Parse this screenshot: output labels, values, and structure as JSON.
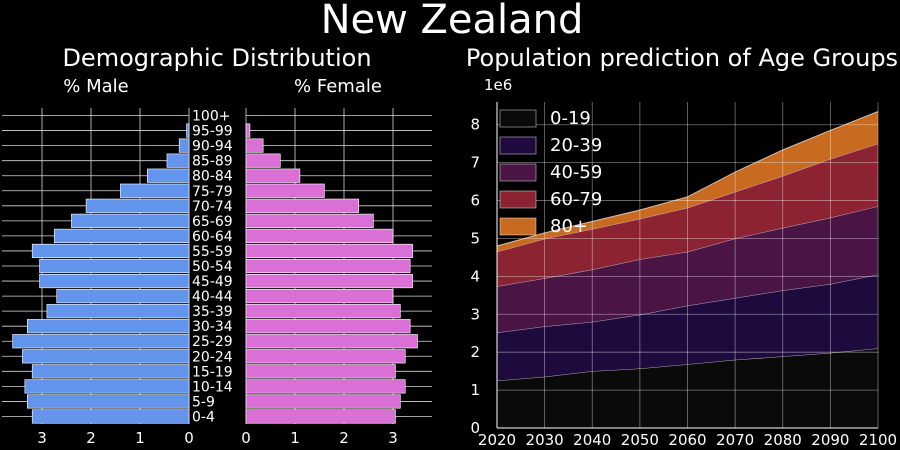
{
  "figure_title": "New Zealand",
  "chart_data": [
    {
      "type": "bar",
      "orientation": "horizontal",
      "title": "Demographic Distribution",
      "left_label": "% Male",
      "right_label": "% Female",
      "categories": [
        "0-4",
        "5-9",
        "10-14",
        "15-19",
        "20-24",
        "25-29",
        "30-34",
        "35-39",
        "40-44",
        "45-49",
        "50-54",
        "55-59",
        "60-64",
        "65-69",
        "70-74",
        "75-79",
        "80-84",
        "85-89",
        "90-94",
        "95-99",
        "100+"
      ],
      "series": [
        {
          "name": "% Male",
          "color": "#6495ED",
          "values": [
            3.2,
            3.3,
            3.35,
            3.2,
            3.4,
            3.6,
            3.3,
            2.9,
            2.7,
            3.05,
            3.05,
            3.2,
            2.75,
            2.4,
            2.1,
            1.4,
            0.85,
            0.45,
            0.2,
            0.05,
            0.0
          ]
        },
        {
          "name": "% Female",
          "color": "#DA70D6",
          "values": [
            3.05,
            3.15,
            3.25,
            3.05,
            3.25,
            3.5,
            3.35,
            3.15,
            3.0,
            3.4,
            3.35,
            3.4,
            3.0,
            2.6,
            2.3,
            1.6,
            1.1,
            0.7,
            0.35,
            0.08,
            0.0
          ]
        }
      ],
      "xlim": [
        0,
        3.8
      ],
      "xticks": [
        0,
        1,
        2,
        3
      ],
      "grid": true
    },
    {
      "type": "area",
      "stacked": true,
      "title": "Population prediction of Age Groups",
      "y_offset_label": "1e6",
      "x": [
        2020,
        2030,
        2040,
        2050,
        2060,
        2070,
        2080,
        2090,
        2100
      ],
      "series": [
        {
          "name": "0-19",
          "color": "#0a0a0a",
          "values": [
            1.25,
            1.35,
            1.5,
            1.57,
            1.68,
            1.8,
            1.89,
            1.98,
            2.1
          ]
        },
        {
          "name": "20-39",
          "color": "#1e0a3c",
          "values": [
            1.27,
            1.33,
            1.3,
            1.42,
            1.55,
            1.63,
            1.74,
            1.82,
            1.95
          ]
        },
        {
          "name": "40-59",
          "color": "#4a1445",
          "values": [
            1.22,
            1.27,
            1.38,
            1.46,
            1.42,
            1.57,
            1.65,
            1.75,
            1.8
          ]
        },
        {
          "name": "60-79",
          "color": "#8b2332",
          "values": [
            0.91,
            1.04,
            1.07,
            1.07,
            1.16,
            1.23,
            1.37,
            1.55,
            1.65
          ]
        },
        {
          "name": "80+",
          "color": "#c86a1f",
          "values": [
            0.15,
            0.16,
            0.2,
            0.23,
            0.29,
            0.52,
            0.69,
            0.75,
            0.85
          ]
        }
      ],
      "xlim": [
        2020,
        2100
      ],
      "ylim": [
        0,
        8.6
      ],
      "xticks": [
        2020,
        2030,
        2040,
        2050,
        2060,
        2070,
        2080,
        2090,
        2100
      ],
      "yticks": [
        0,
        1,
        2,
        3,
        4,
        5,
        6,
        7,
        8
      ],
      "legend": "upper-left",
      "grid": true
    }
  ]
}
